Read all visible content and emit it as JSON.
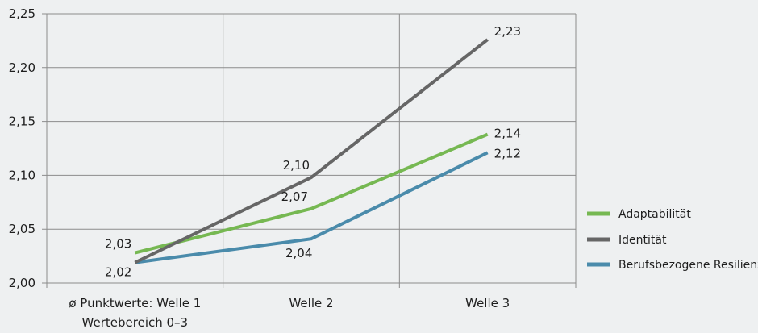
{
  "chart_data": {
    "type": "line",
    "categories": [
      "ø Punktwerte: Welle 1",
      "Welle 2",
      "Welle 3"
    ],
    "category_note": "Wertebereich 0–3",
    "ylim": [
      2.0,
      2.25
    ],
    "yticks": [
      "2,00",
      "2,05",
      "2,10",
      "2,15",
      "2,20",
      "2,25"
    ],
    "ytick_values": [
      2.0,
      2.05,
      2.1,
      2.15,
      2.2,
      2.25
    ],
    "grid": true,
    "legend_position": "right",
    "series": [
      {
        "name": "Adaptabilität",
        "color": "#76b852",
        "values": [
          2.028,
          2.069,
          2.138
        ],
        "labels": [
          "2,03",
          "2,07",
          "2,14"
        ]
      },
      {
        "name": "Identität",
        "color": "#666666",
        "values": [
          2.019,
          2.098,
          2.226
        ],
        "labels": [
          "2,02",
          "2,10",
          "2,23"
        ]
      },
      {
        "name": "Berufsbezogene Resilienz",
        "color": "#4a8bab",
        "values": [
          2.019,
          2.041,
          2.121
        ],
        "labels": [
          "",
          "2,04",
          "2,12"
        ]
      }
    ]
  }
}
